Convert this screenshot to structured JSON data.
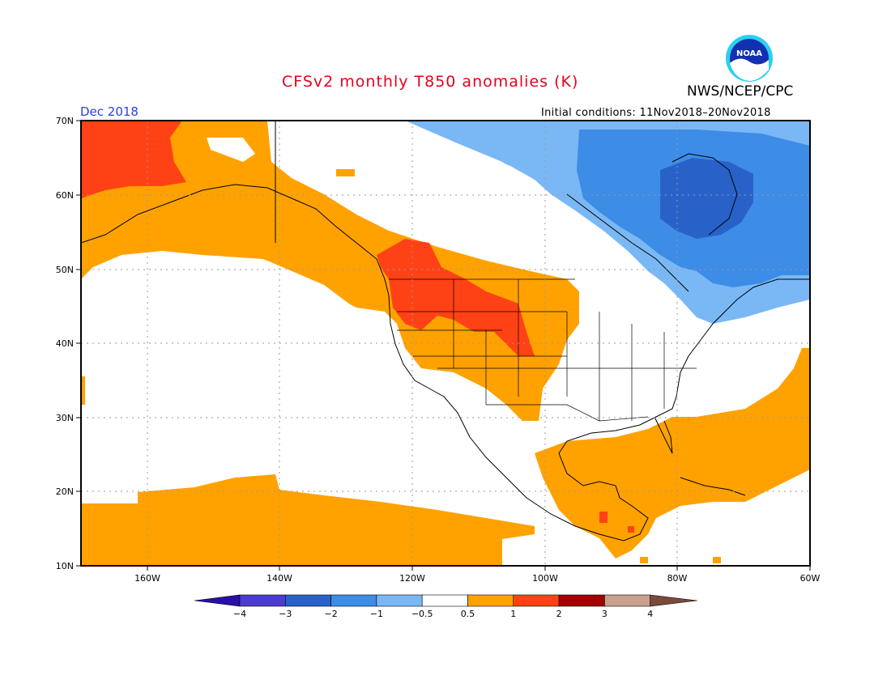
{
  "header": {
    "title": "CFSv2 monthly T850 anomalies (K)",
    "agency": "NWS/NCEP/CPC",
    "period": "Dec 2018",
    "initial_conditions": "Initial conditions: 11Nov2018–20Nov2018",
    "logo_text": "NOAA"
  },
  "map": {
    "lat_labels": [
      "70N",
      "60N",
      "50N",
      "40N",
      "30N",
      "20N",
      "10N"
    ],
    "lon_labels": [
      "160W",
      "140W",
      "120W",
      "100W",
      "80W",
      "60W"
    ],
    "lon_range": [
      "170W",
      "60W"
    ],
    "lat_range": [
      "10N",
      "70N"
    ]
  },
  "colorbar": {
    "labels": [
      "−4",
      "−3",
      "−2",
      "−1",
      "−0.5",
      "0.5",
      "1",
      "2",
      "3",
      "4"
    ],
    "colors": [
      "#2a0ea8",
      "#4a3ccd",
      "#2862c8",
      "#3d8ce6",
      "#7ab8f5",
      "#ffffff",
      "#ffa200",
      "#ff4216",
      "#a00000",
      "#c8a08c",
      "#7a4a3a"
    ]
  }
}
